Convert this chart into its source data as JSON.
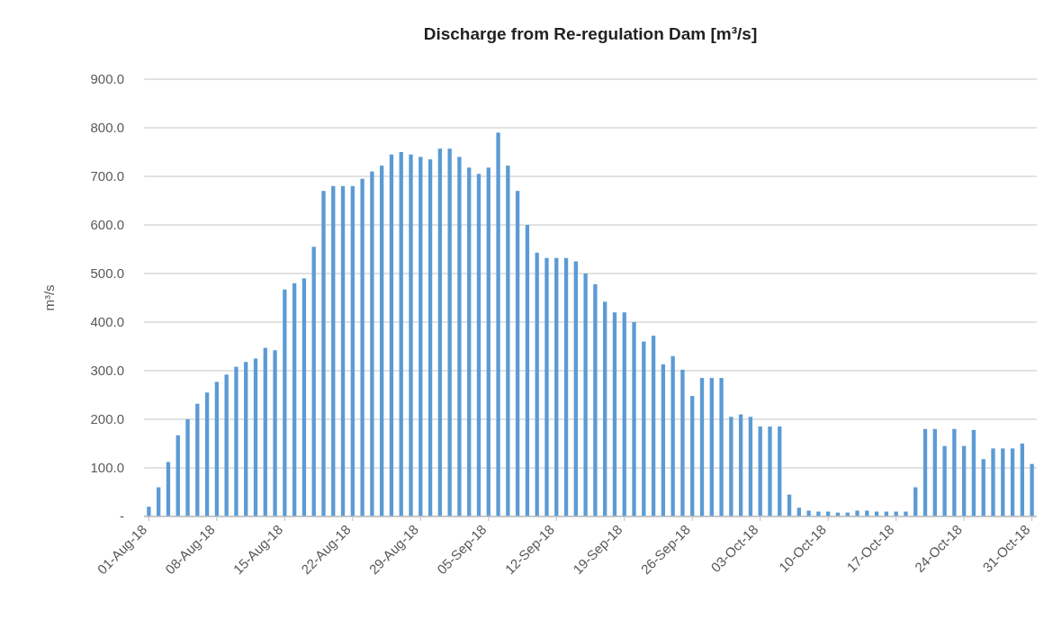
{
  "chart_data": {
    "type": "bar",
    "title": "Discharge from Re-regulation Dam [m³/s]",
    "ylabel": "m³/s",
    "categories": [
      "01-Aug-18",
      null,
      null,
      null,
      null,
      null,
      null,
      "08-Aug-18",
      null,
      null,
      null,
      null,
      null,
      null,
      "15-Aug-18",
      null,
      null,
      null,
      null,
      null,
      null,
      "22-Aug-18",
      null,
      null,
      null,
      null,
      null,
      null,
      "29-Aug-18",
      null,
      null,
      null,
      null,
      null,
      null,
      "05-Sep-18",
      null,
      null,
      null,
      null,
      null,
      null,
      "12-Sep-18",
      null,
      null,
      null,
      null,
      null,
      null,
      "19-Sep-18",
      null,
      null,
      null,
      null,
      null,
      null,
      "26-Sep-18",
      null,
      null,
      null,
      null,
      null,
      null,
      "03-Oct-18",
      null,
      null,
      null,
      null,
      null,
      null,
      "10-Oct-18",
      null,
      null,
      null,
      null,
      null,
      null,
      "17-Oct-18",
      null,
      null,
      null,
      null,
      null,
      null,
      "24-Oct-18",
      null,
      null,
      null,
      null,
      null,
      null,
      "31-Oct-18"
    ],
    "values": [
      20,
      60,
      112,
      167,
      200,
      232,
      255,
      277,
      292,
      308,
      318,
      325,
      347,
      342,
      467,
      480,
      490,
      555,
      670,
      680,
      680,
      680,
      695,
      710,
      722,
      745,
      750,
      745,
      740,
      735,
      757,
      757,
      740,
      718,
      705,
      718,
      790,
      722,
      670,
      600,
      543,
      532,
      532,
      532,
      525,
      500,
      478,
      442,
      420,
      420,
      400,
      360,
      372,
      313,
      330,
      302,
      248,
      285,
      285,
      285,
      205,
      210,
      205,
      185,
      185,
      185,
      45,
      18,
      12,
      10,
      10,
      8,
      8,
      12,
      12,
      10,
      10,
      10,
      10,
      60,
      180,
      180,
      145,
      180,
      145,
      178,
      118,
      140,
      140,
      140,
      150,
      108
    ],
    "color": "#5b9bd5",
    "ylim": [
      0,
      900
    ],
    "yticks": [
      {
        "value": 0,
        "label": "-"
      },
      {
        "value": 100,
        "label": "100.0"
      },
      {
        "value": 200,
        "label": "200.0"
      },
      {
        "value": 300,
        "label": "300.0"
      },
      {
        "value": 400,
        "label": "400.0"
      },
      {
        "value": 500,
        "label": "500.0"
      },
      {
        "value": 600,
        "label": "600.0"
      },
      {
        "value": 700,
        "label": "700.0"
      },
      {
        "value": 800,
        "label": "800.0"
      },
      {
        "value": 900,
        "label": "900.0"
      }
    ],
    "grid": "y"
  }
}
